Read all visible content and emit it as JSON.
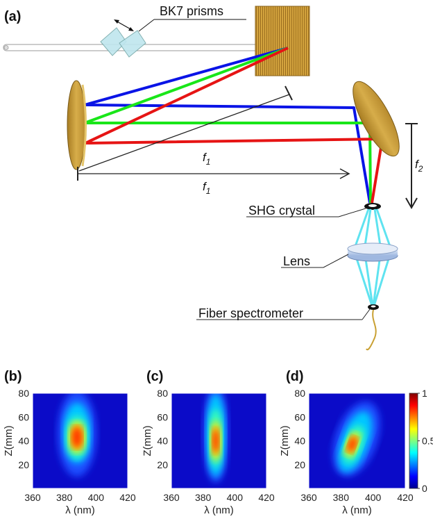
{
  "diagram": {
    "panel_a": "(a)",
    "prisms_label": "BK7 prisms",
    "f1_top": "f",
    "f1_top_sub": "1",
    "f1_bottom": "f",
    "f1_bottom_sub": "1",
    "f2": "f",
    "f2_sub": "2",
    "shg_label": "SHG crystal",
    "lens_label": "Lens",
    "fiber_label": "Fiber spectrometer",
    "beam_colors": {
      "blue": "#0a14e6",
      "green": "#19e619",
      "red": "#e61414"
    },
    "mirror_color": "#c9a032",
    "sh_beam_color": "#5fe3f0"
  },
  "chart_data": [
    {
      "panel": "(b)",
      "type": "heatmap",
      "xlabel": "λ (nm)",
      "ylabel": "Z(mm)",
      "xlim": [
        360,
        420
      ],
      "ylim": [
        0,
        80
      ],
      "xticks": [
        "360",
        "380",
        "400",
        "420"
      ],
      "yticks": [
        "20",
        "40",
        "60",
        "80"
      ],
      "peak_wavelength_nm": 388,
      "peak_z_mm": 43
    },
    {
      "panel": "(c)",
      "type": "heatmap",
      "xlabel": "λ (nm)",
      "ylabel": "Z(mm)",
      "xlim": [
        360,
        420
      ],
      "ylim": [
        0,
        80
      ],
      "xticks": [
        "360",
        "380",
        "400",
        "420"
      ],
      "yticks": [
        "20",
        "40",
        "60",
        "80"
      ],
      "peak_wavelength_nm": 388,
      "peak_z_mm": 40
    },
    {
      "panel": "(d)",
      "type": "heatmap",
      "xlabel": "λ (nm)",
      "ylabel": "Z(mm)",
      "xlim": [
        360,
        420
      ],
      "ylim": [
        0,
        80
      ],
      "xticks": [
        "360",
        "380",
        "400",
        "420"
      ],
      "yticks": [
        "20",
        "40",
        "60",
        "80"
      ],
      "peak_wavelength_nm": 387,
      "peak_z_mm": 37,
      "colorbar": {
        "ticks": [
          "0",
          "0.5",
          "1"
        ],
        "range": [
          0,
          1
        ]
      }
    }
  ]
}
